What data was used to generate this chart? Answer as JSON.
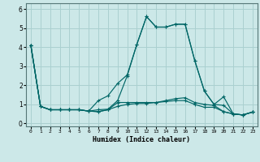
{
  "title": "",
  "xlabel": "Humidex (Indice chaleur)",
  "ylabel": "",
  "background_color": "#cce8e8",
  "grid_color": "#aad0d0",
  "line_color": "#006666",
  "x_ticks": [
    0,
    1,
    2,
    3,
    4,
    5,
    6,
    7,
    8,
    9,
    10,
    11,
    12,
    13,
    14,
    15,
    16,
    17,
    18,
    19,
    20,
    21,
    22,
    23
  ],
  "y_ticks": [
    0,
    1,
    2,
    3,
    4,
    5,
    6
  ],
  "ylim": [
    -0.15,
    6.3
  ],
  "xlim": [
    -0.5,
    23.5
  ],
  "lines": [
    [
      4.1,
      0.9,
      0.72,
      0.72,
      0.72,
      0.72,
      0.65,
      0.72,
      0.75,
      1.2,
      2.5,
      4.15,
      5.6,
      5.05,
      5.05,
      5.2,
      5.2,
      3.3,
      1.7,
      1.0,
      0.95,
      0.5,
      0.45,
      0.6
    ],
    [
      4.1,
      0.9,
      0.72,
      0.72,
      0.72,
      0.72,
      0.65,
      0.62,
      0.72,
      1.1,
      1.1,
      1.1,
      1.1,
      1.1,
      1.2,
      1.3,
      1.35,
      1.1,
      1.0,
      0.95,
      0.62,
      0.5,
      0.45,
      0.6
    ],
    [
      4.1,
      0.9,
      0.72,
      0.72,
      0.72,
      0.72,
      0.65,
      0.62,
      0.72,
      0.9,
      1.0,
      1.05,
      1.05,
      1.1,
      1.15,
      1.2,
      1.2,
      1.0,
      0.85,
      0.85,
      0.62,
      0.5,
      0.45,
      0.6
    ],
    [
      4.1,
      0.9,
      0.72,
      0.72,
      0.72,
      0.72,
      0.65,
      1.2,
      1.45,
      2.1,
      2.55,
      4.15,
      5.6,
      5.05,
      5.05,
      5.2,
      5.2,
      3.3,
      1.7,
      1.0,
      1.4,
      0.5,
      0.45,
      0.6
    ]
  ]
}
